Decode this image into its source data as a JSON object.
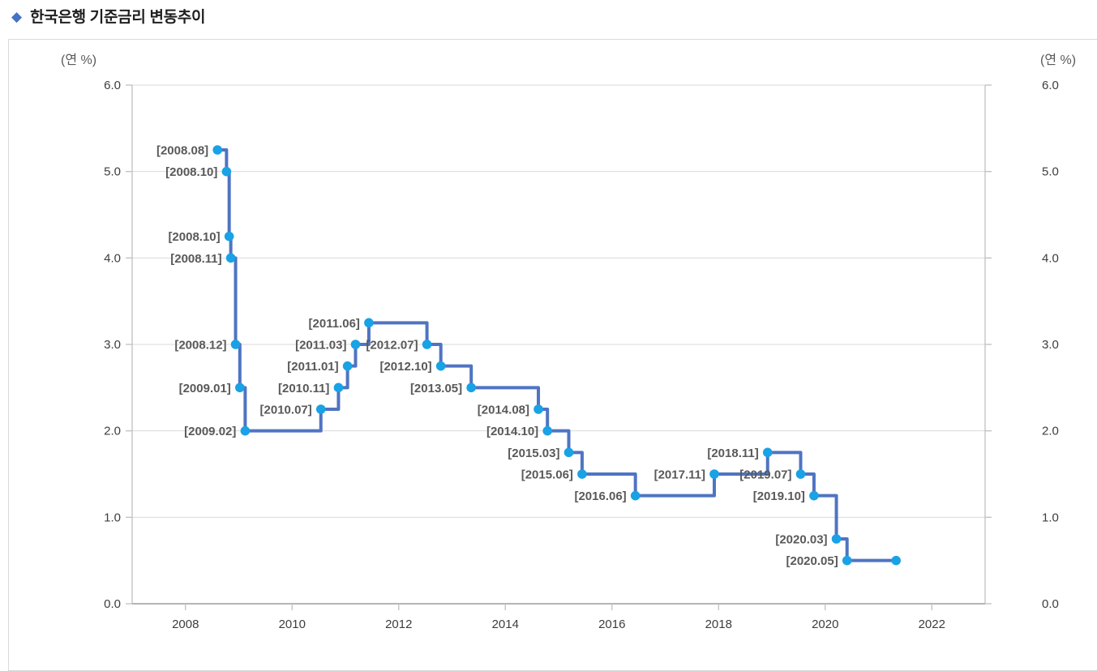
{
  "title": {
    "bullet": "◆",
    "text": "한국은행 기준금리 변동추이"
  },
  "chart_data": {
    "type": "line",
    "step": "after",
    "title": "한국은행 기준금리 변동추이",
    "unit_label_left": "(연 %)",
    "unit_label_right": "(연 %)",
    "ylabel": "연 %",
    "ylim": [
      0.0,
      6.0
    ],
    "yticks": [
      0,
      1,
      2,
      3,
      4,
      5,
      6
    ],
    "ytick_labels": [
      "0.0",
      "1.0",
      "2.0",
      "3.0",
      "4.0",
      "5.0",
      "6.0"
    ],
    "xlim": [
      2007,
      2023
    ],
    "xticks": [
      2008,
      2010,
      2012,
      2014,
      2016,
      2018,
      2020,
      2022
    ],
    "grid": "horizontal",
    "legend_position": "none",
    "series": [
      {
        "name": "기준금리",
        "points": [
          {
            "label": "[2008.08]",
            "t": 2008.6,
            "value": 5.25
          },
          {
            "label": "[2008.10]",
            "t": 2008.77,
            "value": 5.0
          },
          {
            "label": "[2008.10]",
            "t": 2008.82,
            "value": 4.25
          },
          {
            "label": "[2008.11]",
            "t": 2008.85,
            "value": 4.0
          },
          {
            "label": "[2008.12]",
            "t": 2008.94,
            "value": 3.0
          },
          {
            "label": "[2009.01]",
            "t": 2009.02,
            "value": 2.5
          },
          {
            "label": "[2009.02]",
            "t": 2009.12,
            "value": 2.0
          },
          {
            "label": "[2010.07]",
            "t": 2010.54,
            "value": 2.25
          },
          {
            "label": "[2010.11]",
            "t": 2010.87,
            "value": 2.5
          },
          {
            "label": "[2011.01]",
            "t": 2011.04,
            "value": 2.75
          },
          {
            "label": "[2011.03]",
            "t": 2011.19,
            "value": 3.0
          },
          {
            "label": "[2011.06]",
            "t": 2011.44,
            "value": 3.25
          },
          {
            "label": "[2012.07]",
            "t": 2012.53,
            "value": 3.0
          },
          {
            "label": "[2012.10]",
            "t": 2012.79,
            "value": 2.75
          },
          {
            "label": "[2013.05]",
            "t": 2013.36,
            "value": 2.5
          },
          {
            "label": "[2014.08]",
            "t": 2014.62,
            "value": 2.25
          },
          {
            "label": "[2014.10]",
            "t": 2014.79,
            "value": 2.0
          },
          {
            "label": "[2015.03]",
            "t": 2015.19,
            "value": 1.75
          },
          {
            "label": "[2015.06]",
            "t": 2015.44,
            "value": 1.5
          },
          {
            "label": "[2016.06]",
            "t": 2016.44,
            "value": 1.25
          },
          {
            "label": "[2017.11]",
            "t": 2017.92,
            "value": 1.5
          },
          {
            "label": "[2018.11]",
            "t": 2018.92,
            "value": 1.75
          },
          {
            "label": "[2019.07]",
            "t": 2019.54,
            "value": 1.5
          },
          {
            "label": "[2019.10]",
            "t": 2019.79,
            "value": 1.25
          },
          {
            "label": "[2020.03]",
            "t": 2020.21,
            "value": 0.75
          },
          {
            "label": "[2020.05]",
            "t": 2020.41,
            "value": 0.5
          }
        ],
        "line_end": {
          "t": 2021.33,
          "value": 0.5
        }
      }
    ],
    "colors": {
      "line": "#4f74c2",
      "marker": "#19a2e5",
      "grid": "#d9d9d9",
      "axis": "#c0c0c0",
      "axis_bottom": "#b5b5b5",
      "point_label": "#595959",
      "tick_label": "#3d3d3d",
      "unit_label": "#595959",
      "bullet": "#4472c4"
    }
  }
}
